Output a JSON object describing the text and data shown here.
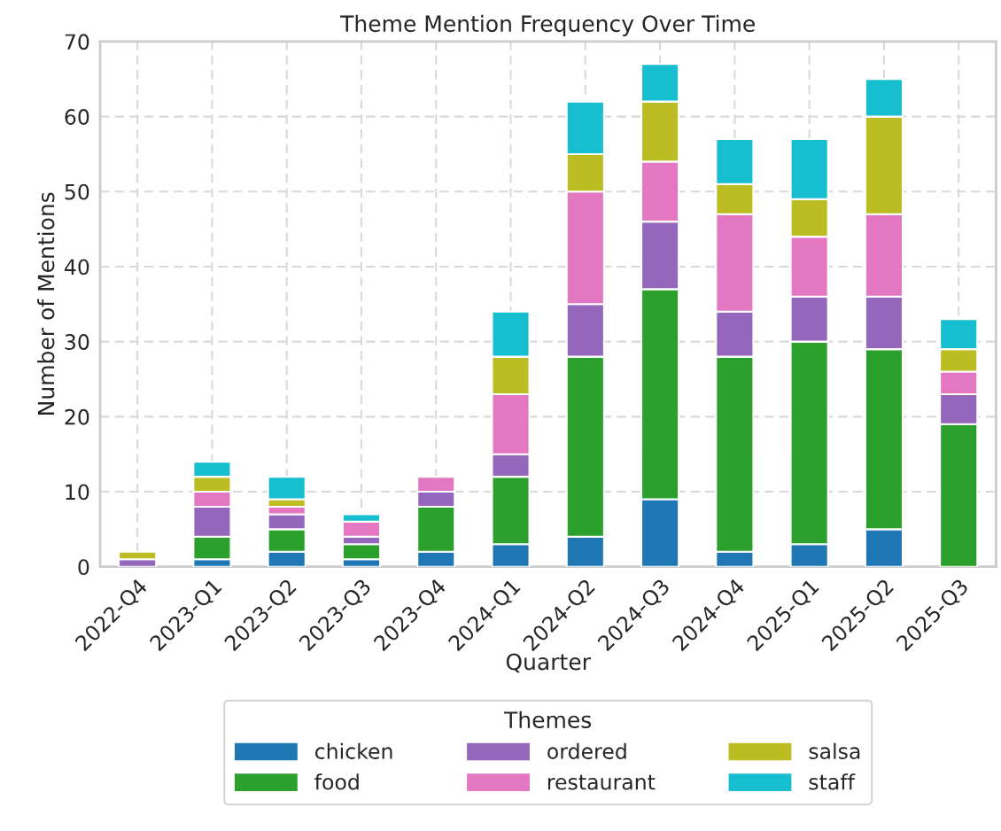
{
  "chart_data": {
    "type": "bar",
    "title": "Theme Mention Frequency Over Time",
    "xlabel": "Quarter",
    "ylabel": "Number of Mentions",
    "legend_title": "Themes",
    "categories": [
      "2022-Q4",
      "2023-Q1",
      "2023-Q2",
      "2023-Q3",
      "2023-Q4",
      "2024-Q1",
      "2024-Q2",
      "2024-Q3",
      "2024-Q4",
      "2025-Q1",
      "2025-Q2",
      "2025-Q3"
    ],
    "stacked": true,
    "series": [
      {
        "name": "chicken",
        "color": "#1f77b4",
        "values": [
          0,
          1,
          2,
          1,
          2,
          3,
          4,
          9,
          2,
          3,
          5,
          0
        ]
      },
      {
        "name": "food",
        "color": "#2ca02c",
        "values": [
          0,
          3,
          3,
          2,
          6,
          9,
          24,
          28,
          26,
          27,
          24,
          19
        ]
      },
      {
        "name": "ordered",
        "color": "#9467bd",
        "values": [
          1,
          4,
          2,
          1,
          2,
          3,
          7,
          9,
          6,
          6,
          7,
          4
        ]
      },
      {
        "name": "restaurant",
        "color": "#e377c2",
        "values": [
          0,
          2,
          1,
          2,
          2,
          8,
          15,
          8,
          13,
          8,
          11,
          3
        ]
      },
      {
        "name": "salsa",
        "color": "#bcbd22",
        "values": [
          1,
          2,
          1,
          0,
          0,
          5,
          5,
          8,
          4,
          5,
          13,
          3
        ]
      },
      {
        "name": "staff",
        "color": "#17becf",
        "values": [
          0,
          2,
          3,
          1,
          0,
          6,
          7,
          5,
          6,
          8,
          5,
          4
        ]
      }
    ],
    "ylim": [
      0,
      70
    ],
    "yticks": [
      0,
      10,
      20,
      30,
      40,
      50,
      60,
      70
    ],
    "grid": true,
    "legend": "bottom"
  }
}
